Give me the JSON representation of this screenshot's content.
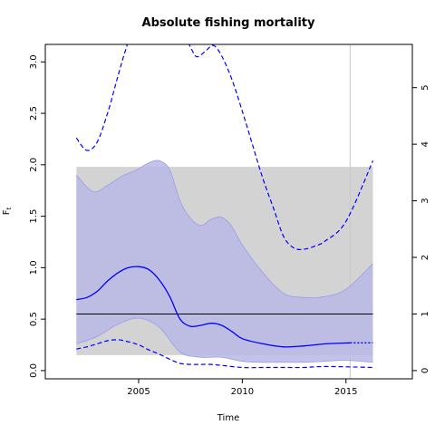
{
  "chart_data": {
    "type": "line",
    "title": "Absolute fishing mortality",
    "xlabel": "Time",
    "ylabel": "F",
    "ylabel_subscript": "t",
    "xlim": [
      2000.5,
      2018.2
    ],
    "ylim": [
      -0.08,
      3.17
    ],
    "x_ticks": [
      2005,
      2010,
      2015
    ],
    "x_tick_labels": [
      "2005",
      "2010",
      "2015"
    ],
    "y_ticks": [
      0.0,
      0.5,
      1.0,
      1.5,
      2.0,
      2.5,
      3.0
    ],
    "y_tick_labels": [
      "0.0",
      "0.5",
      "1.0",
      "1.5",
      "2.0",
      "2.5",
      "3.0"
    ],
    "y2_ratio": 0.55,
    "y2_ticks": [
      0,
      1,
      2,
      3,
      4,
      5
    ],
    "y2_tick_labels": [
      "0",
      "1",
      "2",
      "3",
      "4",
      "5"
    ],
    "grey_box": {
      "x": [
        2002.0,
        2016.3
      ],
      "y": [
        0.15,
        1.98
      ]
    },
    "reference_line": {
      "y": 0.55
    },
    "vertical_line": {
      "x": 2015.2
    },
    "colors": {
      "estimate": "#0000ff",
      "ci_fill": "#b8b8e6",
      "ci_edge": "#9a9aee",
      "grey_box": "#d3d3d3",
      "reference_line": "#000000",
      "vertical_line": "#c8c8c8"
    },
    "series": [
      {
        "role": "ci_upper",
        "x": [
          2002.0,
          2002.8,
          2003.5,
          2004.2,
          2004.9,
          2005.5,
          2006.0,
          2006.5,
          2007.0,
          2007.5,
          2008.0,
          2008.5,
          2009.0,
          2009.5,
          2010.0,
          2011.0,
          2012.0,
          2013.0,
          2014.0,
          2015.0,
          2016.3
        ],
        "y": [
          1.9,
          1.74,
          1.8,
          1.89,
          1.95,
          2.02,
          2.04,
          1.95,
          1.65,
          1.48,
          1.41,
          1.47,
          1.49,
          1.4,
          1.22,
          0.95,
          0.75,
          0.71,
          0.72,
          0.79,
          1.04
        ]
      },
      {
        "role": "ci_lower",
        "x": [
          2002.0,
          2003.0,
          2004.0,
          2005.0,
          2006.0,
          2007.0,
          2008.0,
          2009.0,
          2010.0,
          2011.0,
          2012.0,
          2013.0,
          2014.0,
          2015.0,
          2016.3
        ],
        "y": [
          0.26,
          0.33,
          0.45,
          0.51,
          0.42,
          0.18,
          0.13,
          0.13,
          0.09,
          0.08,
          0.08,
          0.08,
          0.09,
          0.1,
          0.08
        ]
      },
      {
        "role": "estimate",
        "x": [
          2002.0,
          2002.5,
          2003.0,
          2003.5,
          2004.0,
          2004.5,
          2005.0,
          2005.5,
          2006.0,
          2006.5,
          2007.0,
          2007.5,
          2008.0,
          2008.5,
          2009.0,
          2009.5,
          2010.0,
          2011.0,
          2012.0,
          2013.0,
          2014.0,
          2015.2
        ],
        "y": [
          0.69,
          0.71,
          0.77,
          0.87,
          0.95,
          1.0,
          1.01,
          0.98,
          0.88,
          0.72,
          0.5,
          0.43,
          0.44,
          0.46,
          0.44,
          0.38,
          0.31,
          0.26,
          0.23,
          0.24,
          0.26,
          0.27
        ]
      },
      {
        "role": "estimate_forecast",
        "x": [
          2015.2,
          2016.3
        ],
        "y": [
          0.27,
          0.27
        ]
      },
      {
        "role": "upper_dashed",
        "x": [
          2002.0,
          2002.5,
          2003.0,
          2003.5,
          2004.0,
          2004.4,
          2004.8,
          2007.0,
          2007.5,
          2007.8,
          2008.2,
          2008.6,
          2009.0,
          2009.5,
          2010.0,
          2010.5,
          2011.0,
          2011.5,
          2012.0,
          2012.5,
          2013.0,
          2013.5,
          2014.0,
          2015.0,
          2016.3
        ],
        "y": [
          2.26,
          2.14,
          2.22,
          2.5,
          2.86,
          3.13,
          3.3,
          3.3,
          3.14,
          3.05,
          3.1,
          3.16,
          3.06,
          2.83,
          2.52,
          2.19,
          1.86,
          1.58,
          1.3,
          1.19,
          1.18,
          1.21,
          1.26,
          1.45,
          2.04
        ]
      },
      {
        "role": "lower_dashed",
        "x": [
          2002.0,
          2002.5,
          2003.0,
          2003.5,
          2004.0,
          2004.5,
          2005.0,
          2005.5,
          2006.0,
          2006.5,
          2007.0,
          2007.5,
          2008.0,
          2008.5,
          2009.0,
          2010.0,
          2011.0,
          2012.0,
          2013.0,
          2014.0,
          2016.3
        ],
        "y": [
          0.21,
          0.23,
          0.26,
          0.29,
          0.3,
          0.28,
          0.25,
          0.2,
          0.16,
          0.11,
          0.07,
          0.06,
          0.06,
          0.06,
          0.05,
          0.03,
          0.03,
          0.03,
          0.03,
          0.04,
          0.03
        ]
      }
    ]
  }
}
